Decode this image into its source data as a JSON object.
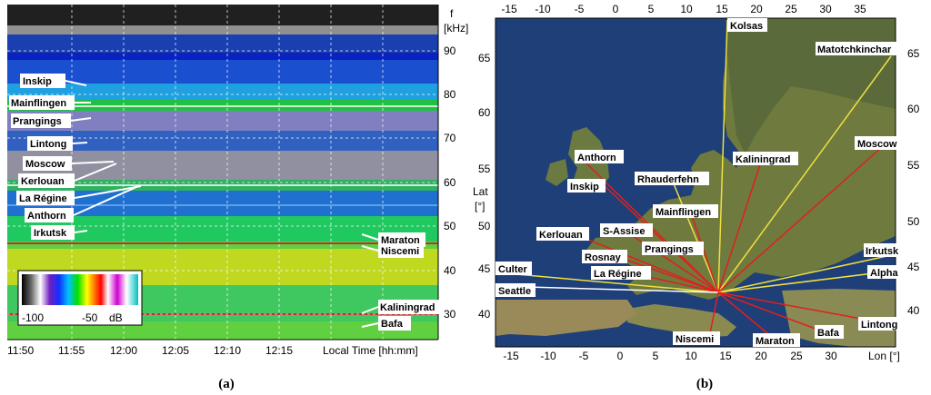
{
  "panel_a": {
    "caption": "(a)",
    "freq_unit_f": "f",
    "freq_unit": "[kHz]",
    "freq_ticks": [
      "90",
      "80",
      "70",
      "60",
      "50",
      "40",
      "30"
    ],
    "time_ticks": [
      "11:50",
      "11:55",
      "12:00",
      "12:05",
      "12:10",
      "12:15"
    ],
    "time_axis_label": "Local Time [hh:mm]",
    "colorbar": {
      "labels": [
        "-100",
        "-50",
        "dB"
      ]
    },
    "stations_left": [
      "Inskip",
      "Mainflingen",
      "Prangings",
      "Lintong",
      "Moscow",
      "Kerlouan",
      "La Régine",
      "Anthorn",
      "Irkutsk"
    ],
    "stations_right": [
      "Maraton",
      "Niscemi",
      "Kaliningrad",
      "Bafa"
    ]
  },
  "panel_b": {
    "caption": "(b)",
    "lon_ticks_top": [
      "-15",
      "-10",
      "-5",
      "0",
      "5",
      "10",
      "15",
      "20",
      "25",
      "30",
      "35"
    ],
    "lon_ticks_bottom": [
      "-15",
      "-10",
      "-5",
      "0",
      "5",
      "10",
      "15",
      "20",
      "25",
      "30"
    ],
    "lon_label": "Lon [°]",
    "lat_ticks_left": [
      "65",
      "60",
      "55",
      "50",
      "45",
      "40"
    ],
    "lat_ticks_right": [
      "65",
      "60",
      "55",
      "50",
      "45",
      "40"
    ],
    "lat_label": "Lat",
    "lat_unit": "[°]",
    "stations": [
      "Kolsas",
      "Matotchkinchar",
      "Moscow",
      "Anthorn",
      "Kaliningrad",
      "Rhauderfehn",
      "Inskip",
      "Mainflingen",
      "Kerlouan",
      "S-Assise",
      "Prangings",
      "Rosnay",
      "Irkutsk",
      "Culter",
      "La Régine",
      "Alpha",
      "Seattle",
      "Lintong",
      "Bafa",
      "Niscemi",
      "Maraton"
    ]
  },
  "colors": {
    "land": "#6f7a3e",
    "sea": "#1f3f78",
    "red_path": "#e0201c",
    "yellow_path": "#f0e040"
  }
}
